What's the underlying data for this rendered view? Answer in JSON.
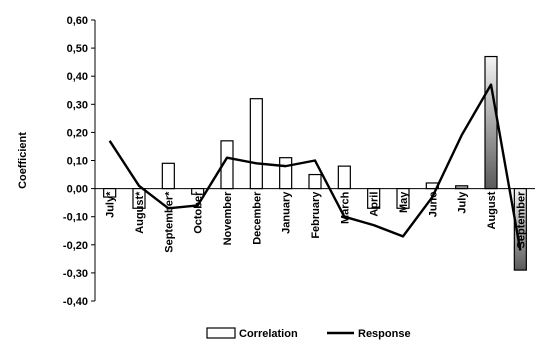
{
  "chart_data": {
    "type": "bar",
    "ylabel": "Coefficient",
    "ylim": [
      -0.4,
      0.6
    ],
    "yticks": [
      -0.4,
      -0.3,
      -0.2,
      -0.1,
      0.0,
      0.1,
      0.2,
      0.3,
      0.4,
      0.5,
      0.6
    ],
    "ytick_labels": [
      "-0,40",
      "-0,30",
      "-0,20",
      "-0,10",
      "0,00",
      "0,10",
      "0,20",
      "0,30",
      "0,40",
      "0,50",
      "0,60"
    ],
    "categories": [
      "July*",
      "August*",
      "September*",
      "October",
      "November",
      "December",
      "January",
      "February",
      "March",
      "April",
      "May",
      "June",
      "July",
      "August",
      "September"
    ],
    "series": [
      {
        "name": "Correlation",
        "type": "bar",
        "values": [
          -0.03,
          -0.07,
          0.09,
          -0.02,
          0.17,
          0.32,
          0.11,
          0.05,
          0.08,
          -0.07,
          -0.07,
          0.02,
          0.01,
          0.47,
          -0.29
        ],
        "highlight": [
          false,
          false,
          false,
          false,
          false,
          false,
          false,
          false,
          false,
          false,
          false,
          false,
          true,
          true,
          true
        ]
      },
      {
        "name": "Response",
        "type": "line",
        "values": [
          0.17,
          0.01,
          -0.07,
          -0.06,
          0.11,
          0.09,
          0.08,
          0.1,
          -0.1,
          -0.13,
          -0.17,
          -0.03,
          0.19,
          0.37,
          -0.22
        ]
      }
    ],
    "legend_position": "bottom",
    "grid": false,
    "colors": {
      "bar_fill": "#ffffff",
      "bar_stroke": "#000000",
      "highlight_dark": "#5a5a5a",
      "highlight_light": "#f4f4f4",
      "line": "#000000"
    }
  }
}
